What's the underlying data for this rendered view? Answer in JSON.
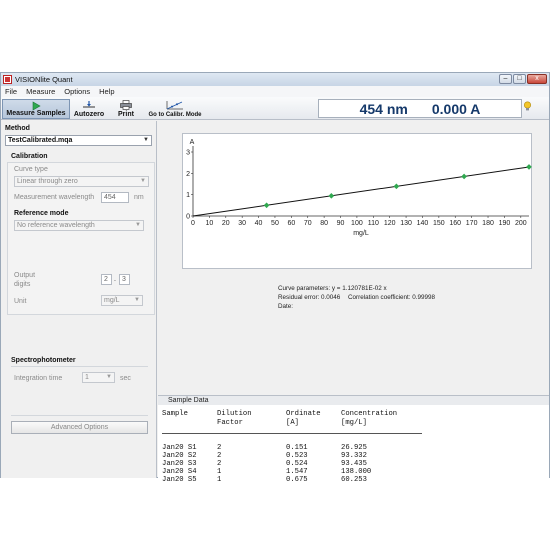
{
  "window": {
    "title": "VISIONlite Quant",
    "min": "–",
    "max": "□",
    "close": "x"
  },
  "menu": [
    "File",
    "Measure",
    "Options",
    "Help"
  ],
  "toolbar": {
    "measure_samples": "Measure Samples",
    "autozero": "Autozero",
    "print": "Print",
    "go_calibr": "Go to Calibr. Mode"
  },
  "readout": {
    "wavelength": "454 nm",
    "absorbance": "0.000 A"
  },
  "left": {
    "method_label": "Method",
    "method_value": "TestCalibrated.mqa",
    "calibration_label": "Calibration",
    "curve_type_label": "Curve type",
    "curve_type_value": "Linear through zero",
    "meas_wl_label": "Measurement wavelength",
    "meas_wl_value": "454",
    "meas_wl_unit": "nm",
    "ref_mode_label": "Reference mode",
    "ref_mode_value": "No reference wavelength",
    "output_digits_label_1": "Output",
    "output_digits_label_2": "digits",
    "digits_a": "2",
    "digits_sep": ".",
    "digits_b": "3",
    "unit_label": "Unit",
    "unit_value": "mg/L",
    "spectro_label": "Spectrophotometer",
    "integration_label": "Integration time",
    "integration_value": "1",
    "integration_unit": "sec",
    "advanced_button": "Advanced Options"
  },
  "chart_data": {
    "type": "scatter",
    "title": "",
    "xlabel": "mg/L",
    "ylabel": "A",
    "xlim": [
      0,
      205
    ],
    "ylim": [
      0,
      3
    ],
    "xticks": [
      0,
      10,
      20,
      30,
      40,
      50,
      60,
      70,
      80,
      90,
      100,
      110,
      120,
      130,
      140,
      150,
      160,
      170,
      180,
      190,
      200
    ],
    "yticks": [
      0,
      1,
      2,
      3
    ],
    "grid": false,
    "points": [
      {
        "x": 44.9,
        "y": 0.503
      },
      {
        "x": 84.4,
        "y": 0.946
      },
      {
        "x": 124.1,
        "y": 1.391
      },
      {
        "x": 165.4,
        "y": 1.854
      },
      {
        "x": 205.0,
        "y": 2.3
      }
    ],
    "fit_line": {
      "slope": 0.01120781,
      "x": [
        0,
        205
      ]
    },
    "point_color": "#2fa84f",
    "line_color": "#111111"
  },
  "curve_info": {
    "params": "Curve parameters: y  =  1.120781E-02 x",
    "residual": "Residual error: 0.0046",
    "correlation": "Correlation coefficient: 0.99998",
    "date": "Date:"
  },
  "sample_data": {
    "title": "Sample Data",
    "headers": [
      [
        "Sample",
        ""
      ],
      [
        "Dilution",
        "Factor"
      ],
      [
        "Ordinate",
        "[A]"
      ],
      [
        "Concentration",
        "[mg/L]"
      ]
    ],
    "rows": [
      [
        "Jan20 S1",
        "2",
        "0.151",
        "26.925"
      ],
      [
        "Jan20 S2",
        "2",
        "0.523",
        "93.332"
      ],
      [
        "Jan20 S3",
        "2",
        "0.524",
        "93.435"
      ],
      [
        "Jan20 S4",
        "1",
        "1.547",
        "138.000"
      ],
      [
        "Jan20 S5",
        "1",
        "0.675",
        "60.253"
      ]
    ]
  },
  "colors": {
    "readout_text": "#15396a",
    "accent_green": "#2fa84f"
  }
}
